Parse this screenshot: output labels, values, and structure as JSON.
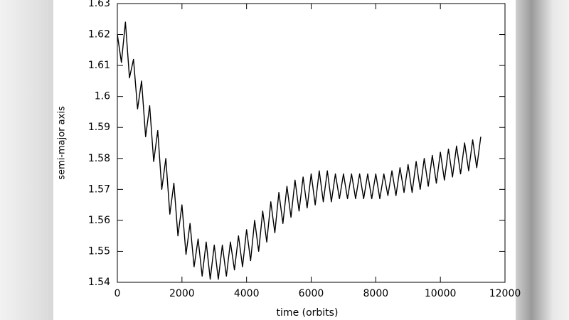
{
  "chart_data": {
    "type": "line",
    "xlabel": "time (orbits)",
    "ylabel": "semi-major axis",
    "xlim": [
      0,
      12000
    ],
    "xticks": [
      0,
      2000,
      4000,
      6000,
      8000,
      10000,
      12000
    ],
    "ylim": [
      1.54,
      1.63
    ],
    "yticks": [
      1.54,
      1.55,
      1.56,
      1.57,
      1.58,
      1.59,
      1.6,
      1.61,
      1.62,
      1.63
    ],
    "grid": false,
    "series": [
      {
        "color": "#000000",
        "x": [
          0,
          125,
          250,
          375,
          500,
          625,
          750,
          875,
          1000,
          1125,
          1250,
          1375,
          1500,
          1625,
          1750,
          1875,
          2000,
          2125,
          2250,
          2375,
          2500,
          2625,
          2750,
          2875,
          3000,
          3125,
          3250,
          3375,
          3500,
          3625,
          3750,
          3875,
          4000,
          4125,
          4250,
          4375,
          4500,
          4625,
          4750,
          4875,
          5000,
          5125,
          5250,
          5375,
          5500,
          5625,
          5750,
          5875,
          6000,
          6125,
          6250,
          6375,
          6500,
          6625,
          6750,
          6875,
          7000,
          7125,
          7250,
          7375,
          7500,
          7625,
          7750,
          7875,
          8000,
          8125,
          8250,
          8375,
          8500,
          8625,
          8750,
          8875,
          9000,
          9125,
          9250,
          9375,
          9500,
          9625,
          9750,
          9875,
          10000,
          10125,
          10250,
          10375,
          10500,
          10625,
          10750,
          10875,
          11000,
          11125,
          11250
        ],
        "values": [
          1.62,
          1.611,
          1.624,
          1.606,
          1.612,
          1.596,
          1.605,
          1.587,
          1.597,
          1.579,
          1.589,
          1.57,
          1.58,
          1.562,
          1.572,
          1.555,
          1.565,
          1.549,
          1.559,
          1.545,
          1.554,
          1.542,
          1.553,
          1.541,
          1.552,
          1.541,
          1.552,
          1.542,
          1.553,
          1.544,
          1.555,
          1.545,
          1.557,
          1.547,
          1.56,
          1.55,
          1.563,
          1.553,
          1.566,
          1.556,
          1.569,
          1.559,
          1.571,
          1.561,
          1.573,
          1.563,
          1.574,
          1.564,
          1.575,
          1.565,
          1.576,
          1.566,
          1.576,
          1.566,
          1.575,
          1.567,
          1.575,
          1.567,
          1.575,
          1.567,
          1.575,
          1.567,
          1.575,
          1.567,
          1.575,
          1.567,
          1.575,
          1.568,
          1.576,
          1.568,
          1.577,
          1.569,
          1.578,
          1.569,
          1.579,
          1.57,
          1.58,
          1.571,
          1.581,
          1.572,
          1.582,
          1.573,
          1.583,
          1.574,
          1.584,
          1.575,
          1.585,
          1.576,
          1.586,
          1.577,
          1.587
        ]
      }
    ]
  }
}
